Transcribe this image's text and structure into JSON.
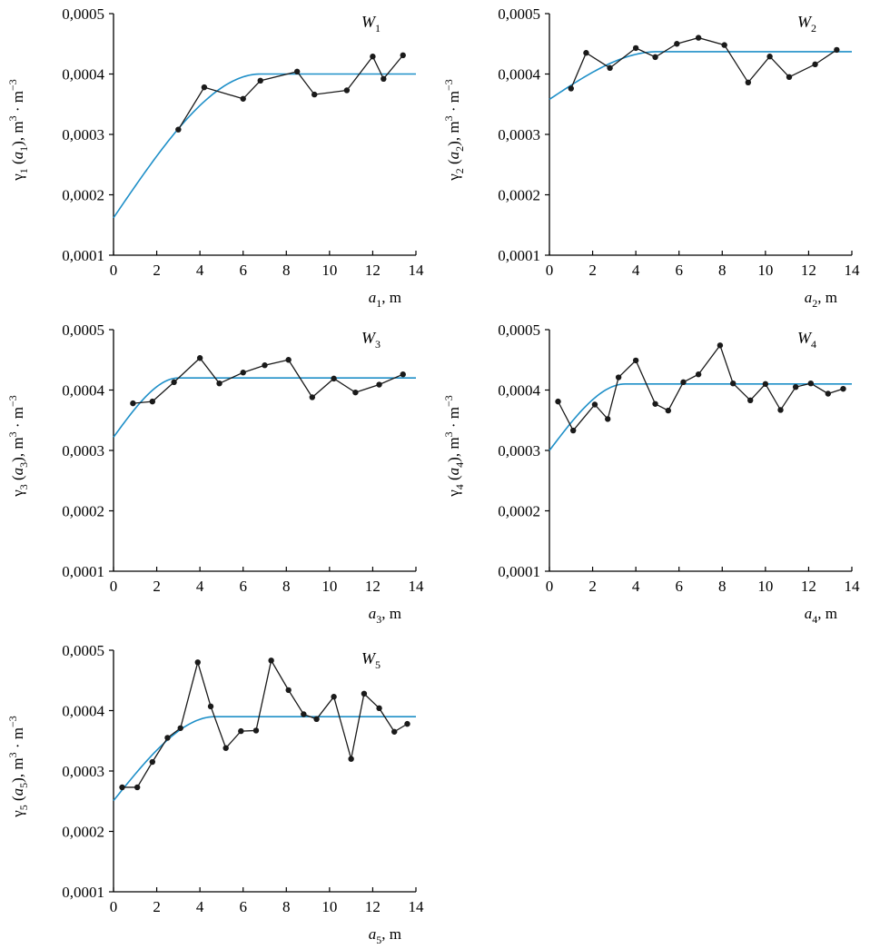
{
  "chart_data": [
    {
      "type": "line",
      "title": "W₁",
      "title_main": "W",
      "title_sub": "1",
      "ylabel": "γ₁ (a₁), m³ · m⁻³",
      "xlabel": "a₁, m",
      "xlabel_parts": {
        "main": "a",
        "sub": "1",
        "unit": ", m"
      },
      "ylabel_parts": {
        "gamma": "γ",
        "sub": "1",
        "arg": "a",
        "unit": "m",
        "exp1": "3",
        "exp2": "−3"
      },
      "xlim": [
        0,
        14
      ],
      "ylim": [
        0.0001,
        0.0005
      ],
      "xticks": [
        "0",
        "2",
        "4",
        "6",
        "8",
        "10",
        "12",
        "14"
      ],
      "yticks": [
        "0,0001",
        "0,0002",
        "0,0003",
        "0,0004",
        "0,0005"
      ],
      "series": [
        {
          "kind": "empirical",
          "color": "#1a1a1a",
          "x": [
            3.0,
            4.2,
            6.0,
            6.8,
            8.5,
            9.3,
            10.8,
            12.0,
            12.5,
            13.4
          ],
          "y": [
            0.000308,
            0.000378,
            0.000359,
            0.000389,
            0.000404,
            0.000366,
            0.000373,
            0.000429,
            0.000392,
            0.000431
          ]
        },
        {
          "kind": "model",
          "color": "#1e8fc8",
          "nugget": 0.000162,
          "sill": 0.0004,
          "range": 6.8
        }
      ]
    },
    {
      "type": "line",
      "title": "W₂",
      "title_main": "W",
      "title_sub": "2",
      "ylabel": "γ₂ (a₂), m³ · m⁻³",
      "xlabel": "a₂, m",
      "xlabel_parts": {
        "main": "a",
        "sub": "2",
        "unit": ", m"
      },
      "ylabel_parts": {
        "gamma": "γ",
        "sub": "2",
        "arg": "a",
        "unit": "m",
        "exp1": "3",
        "exp2": "−3"
      },
      "xlim": [
        0,
        14
      ],
      "ylim": [
        0.0001,
        0.0005
      ],
      "xticks": [
        "0",
        "2",
        "4",
        "6",
        "8",
        "10",
        "12",
        "14"
      ],
      "yticks": [
        "0,0001",
        "0,0002",
        "0,0003",
        "0,0004",
        "0,0005"
      ],
      "series": [
        {
          "kind": "empirical",
          "color": "#1a1a1a",
          "x": [
            1.0,
            1.7,
            2.8,
            4.0,
            4.9,
            5.9,
            6.9,
            8.1,
            9.2,
            10.2,
            11.1,
            12.3,
            13.3
          ],
          "y": [
            0.000376,
            0.000435,
            0.00041,
            0.000443,
            0.000428,
            0.00045,
            0.00046,
            0.000448,
            0.000386,
            0.000429,
            0.000395,
            0.000416,
            0.00044
          ]
        },
        {
          "kind": "model",
          "color": "#1e8fc8",
          "nugget": 0.000358,
          "sill": 0.000437,
          "range": 5.0
        }
      ]
    },
    {
      "type": "line",
      "title": "W₃",
      "title_main": "W",
      "title_sub": "3",
      "ylabel": "γ₃ (a₃), m³ · m⁻³",
      "xlabel": "a₃, m",
      "xlabel_parts": {
        "main": "a",
        "sub": "3",
        "unit": ", m"
      },
      "ylabel_parts": {
        "gamma": "γ",
        "sub": "3",
        "arg": "a",
        "unit": "m",
        "exp1": "3",
        "exp2": "−3"
      },
      "xlim": [
        0,
        14
      ],
      "ylim": [
        0.0001,
        0.0005
      ],
      "xticks": [
        "0",
        "2",
        "4",
        "6",
        "8",
        "10",
        "12",
        "14"
      ],
      "yticks": [
        "0,0001",
        "0,0002",
        "0,0003",
        "0,0004",
        "0,0005"
      ],
      "series": [
        {
          "kind": "empirical",
          "color": "#1a1a1a",
          "x": [
            0.9,
            1.8,
            2.8,
            4.0,
            4.9,
            6.0,
            7.0,
            8.1,
            9.2,
            10.2,
            11.2,
            12.3,
            13.4
          ],
          "y": [
            0.000378,
            0.000381,
            0.000413,
            0.000453,
            0.000411,
            0.000429,
            0.000441,
            0.00045,
            0.000388,
            0.000419,
            0.000396,
            0.000409,
            0.000426
          ]
        },
        {
          "kind": "model",
          "color": "#1e8fc8",
          "nugget": 0.000322,
          "sill": 0.00042,
          "range": 3.0
        }
      ]
    },
    {
      "type": "line",
      "title": "W₄",
      "title_main": "W",
      "title_sub": "4",
      "ylabel": "γ₄ (a₄), m³ · m⁻³",
      "xlabel": "a₄, m",
      "xlabel_parts": {
        "main": "a",
        "sub": "4",
        "unit": ", m"
      },
      "ylabel_parts": {
        "gamma": "γ",
        "sub": "4",
        "arg": "a",
        "unit": "m",
        "exp1": "3",
        "exp2": "−3"
      },
      "xlim": [
        0,
        14
      ],
      "ylim": [
        0.0001,
        0.0005
      ],
      "xticks": [
        "0",
        "2",
        "4",
        "6",
        "8",
        "10",
        "12",
        "14"
      ],
      "yticks": [
        "0,0001",
        "0,0002",
        "0,0003",
        "0,0004",
        "0,0005"
      ],
      "series": [
        {
          "kind": "empirical",
          "color": "#1a1a1a",
          "x": [
            0.4,
            1.1,
            2.1,
            2.7,
            3.2,
            4.0,
            4.9,
            5.5,
            6.2,
            6.9,
            7.9,
            8.5,
            9.3,
            10.0,
            10.7,
            11.4,
            12.1,
            12.9,
            13.6
          ],
          "y": [
            0.000381,
            0.000333,
            0.000376,
            0.000352,
            0.000421,
            0.000449,
            0.000377,
            0.000366,
            0.000413,
            0.000426,
            0.000474,
            0.000411,
            0.000383,
            0.00041,
            0.000367,
            0.000405,
            0.000411,
            0.000394,
            0.000402
          ]
        },
        {
          "kind": "model",
          "color": "#1e8fc8",
          "nugget": 0.0003,
          "sill": 0.00041,
          "range": 3.5
        }
      ]
    },
    {
      "type": "line",
      "title": "W₅",
      "title_main": "W",
      "title_sub": "5",
      "ylabel": "γ₅ (a₅), m³ · m⁻³",
      "xlabel": "a₅, m",
      "xlabel_parts": {
        "main": "a",
        "sub": "5",
        "unit": ", m"
      },
      "ylabel_parts": {
        "gamma": "γ",
        "sub": "5",
        "arg": "a",
        "unit": "m",
        "exp1": "3",
        "exp2": "−3"
      },
      "xlim": [
        0,
        14
      ],
      "ylim": [
        0.0001,
        0.0005
      ],
      "xticks": [
        "0",
        "2",
        "4",
        "6",
        "8",
        "10",
        "12",
        "14"
      ],
      "yticks": [
        "0,0001",
        "0,0002",
        "0,0003",
        "0,0004",
        "0,0005"
      ],
      "series": [
        {
          "kind": "empirical",
          "color": "#1a1a1a",
          "x": [
            0.4,
            1.1,
            1.8,
            2.5,
            3.1,
            3.9,
            4.5,
            5.2,
            5.9,
            6.6,
            7.3,
            8.1,
            8.8,
            9.4,
            10.2,
            11.0,
            11.6,
            12.3,
            13.0,
            13.6
          ],
          "y": [
            0.000273,
            0.000273,
            0.000315,
            0.000355,
            0.000371,
            0.00048,
            0.000407,
            0.000338,
            0.000366,
            0.000367,
            0.000483,
            0.000434,
            0.000394,
            0.000386,
            0.000423,
            0.00032,
            0.000428,
            0.000404,
            0.000365,
            0.000378
          ]
        },
        {
          "kind": "model",
          "color": "#1e8fc8",
          "nugget": 0.000251,
          "sill": 0.00039,
          "range": 4.7
        }
      ]
    }
  ]
}
